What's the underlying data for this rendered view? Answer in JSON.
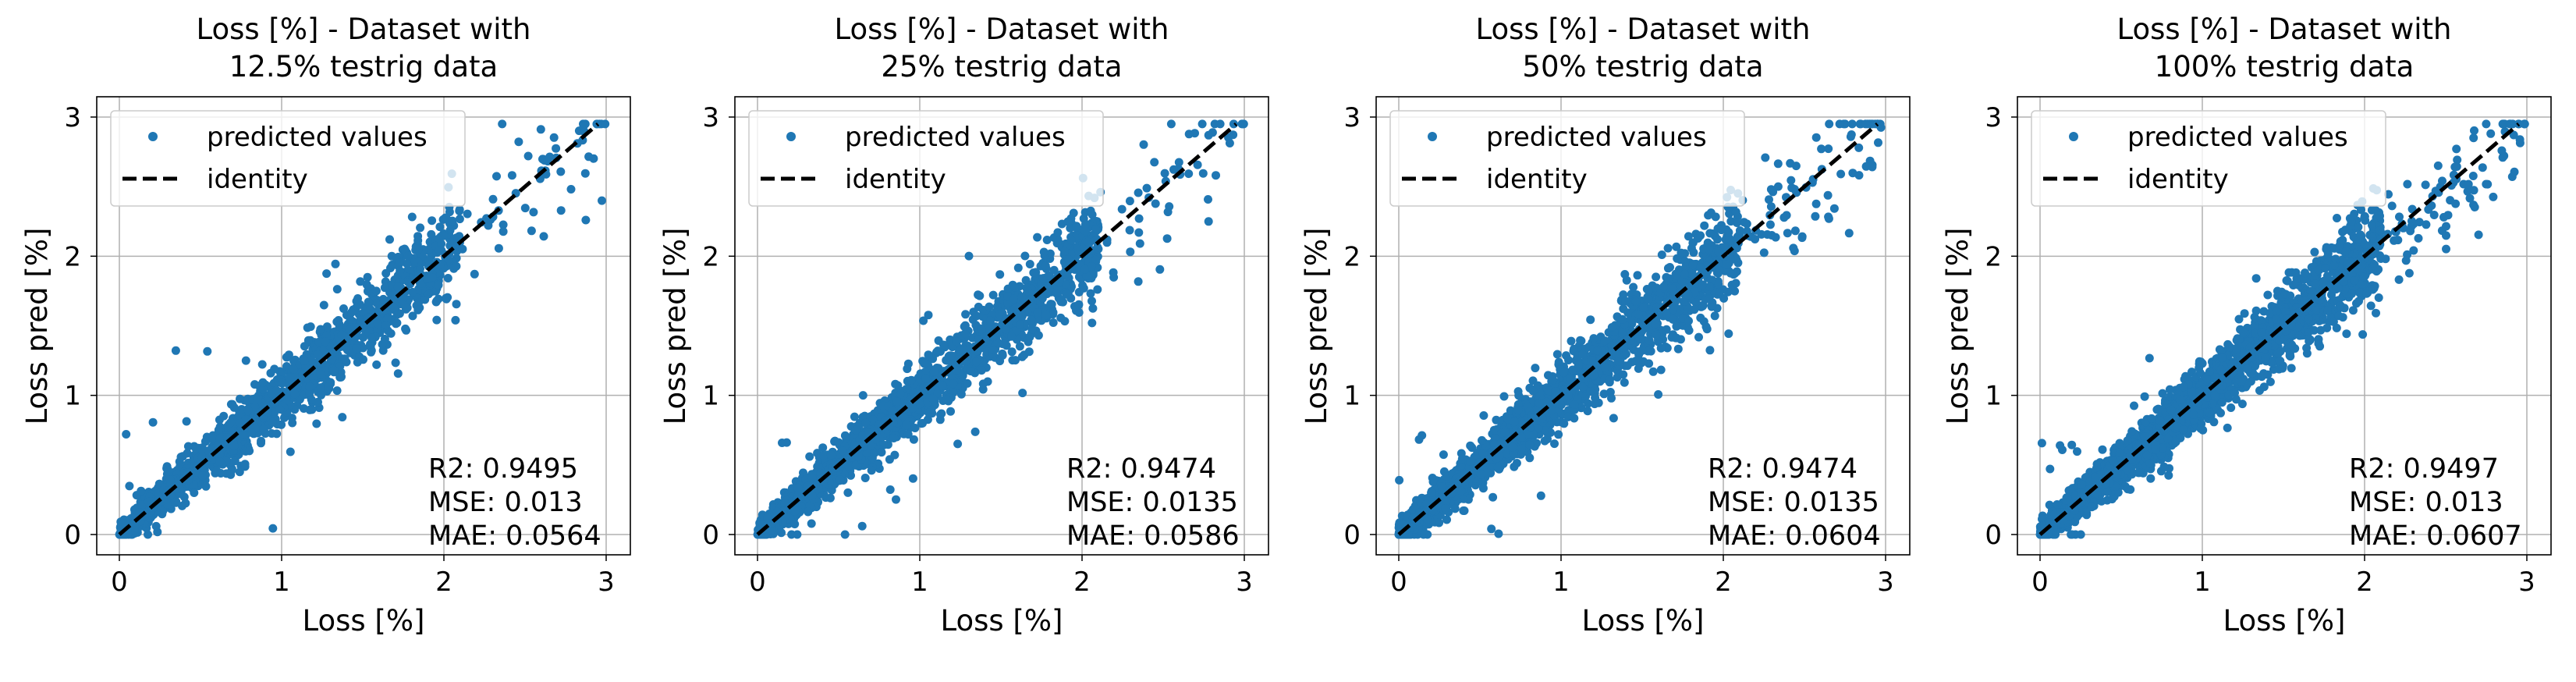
{
  "chart_data": [
    {
      "type": "scatter",
      "title_line1": "Loss [%] - Dataset with",
      "title_line2": "12.5% testrig data",
      "xlabel": "Loss [%]",
      "ylabel": "Loss pred [%]",
      "xlim": [
        -0.15,
        3.15
      ],
      "ylim": [
        -0.15,
        3.15
      ],
      "xticks": [
        "0",
        "1",
        "2",
        "3"
      ],
      "yticks": [
        "0",
        "1",
        "2",
        "3"
      ],
      "grid": true,
      "legend": {
        "placement": "top-left",
        "entries": [
          "predicted values",
          "identity"
        ]
      },
      "stats": [
        "R2: 0.9495",
        "MSE: 0.013",
        "MAE: 0.0564"
      ],
      "r2": 0.9495,
      "mse": 0.013,
      "mae": 0.0564,
      "identity": {
        "x": [
          0,
          2.95
        ],
        "y": [
          0,
          2.95
        ]
      },
      "seed": 11
    },
    {
      "type": "scatter",
      "title_line1": "Loss [%] - Dataset with",
      "title_line2": "25% testrig data",
      "xlabel": "Loss [%]",
      "ylabel": "Loss pred [%]",
      "xlim": [
        -0.15,
        3.15
      ],
      "ylim": [
        -0.15,
        3.15
      ],
      "xticks": [
        "0",
        "1",
        "2",
        "3"
      ],
      "yticks": [
        "0",
        "1",
        "2",
        "3"
      ],
      "grid": true,
      "legend": {
        "placement": "top-left",
        "entries": [
          "predicted values",
          "identity"
        ]
      },
      "stats": [
        "R2: 0.9474",
        "MSE: 0.0135",
        "MAE: 0.0586"
      ],
      "r2": 0.9474,
      "mse": 0.0135,
      "mae": 0.0586,
      "identity": {
        "x": [
          0,
          2.95
        ],
        "y": [
          0,
          2.95
        ]
      },
      "seed": 23
    },
    {
      "type": "scatter",
      "title_line1": "Loss [%] - Dataset with",
      "title_line2": "50% testrig data",
      "xlabel": "Loss [%]",
      "ylabel": "Loss pred [%]",
      "xlim": [
        -0.15,
        3.15
      ],
      "ylim": [
        -0.15,
        3.15
      ],
      "xticks": [
        "0",
        "1",
        "2",
        "3"
      ],
      "yticks": [
        "0",
        "1",
        "2",
        "3"
      ],
      "grid": true,
      "legend": {
        "placement": "top-left",
        "entries": [
          "predicted values",
          "identity"
        ]
      },
      "stats": [
        "R2: 0.9474",
        "MSE: 0.0135",
        "MAE: 0.0604"
      ],
      "r2": 0.9474,
      "mse": 0.0135,
      "mae": 0.0604,
      "identity": {
        "x": [
          0,
          2.95
        ],
        "y": [
          0,
          2.95
        ]
      },
      "seed": 37
    },
    {
      "type": "scatter",
      "title_line1": "Loss [%] - Dataset with",
      "title_line2": "100% testrig data",
      "xlabel": "Loss [%]",
      "ylabel": "Loss pred [%]",
      "xlim": [
        -0.15,
        3.15
      ],
      "ylim": [
        -0.15,
        3.15
      ],
      "xticks": [
        "0",
        "1",
        "2",
        "3"
      ],
      "yticks": [
        "0",
        "1",
        "2",
        "3"
      ],
      "grid": true,
      "legend": {
        "placement": "top-left",
        "entries": [
          "predicted values",
          "identity"
        ]
      },
      "stats": [
        "R2: 0.9497",
        "MSE: 0.013",
        "MAE: 0.0607"
      ],
      "r2": 0.9497,
      "mse": 0.013,
      "mae": 0.0607,
      "identity": {
        "x": [
          0,
          2.95
        ],
        "y": [
          0,
          2.95
        ]
      },
      "seed": 51
    }
  ],
  "colors": {
    "points": "#1f77b4",
    "identity": "#000000",
    "grid": "#b0b0b0"
  }
}
